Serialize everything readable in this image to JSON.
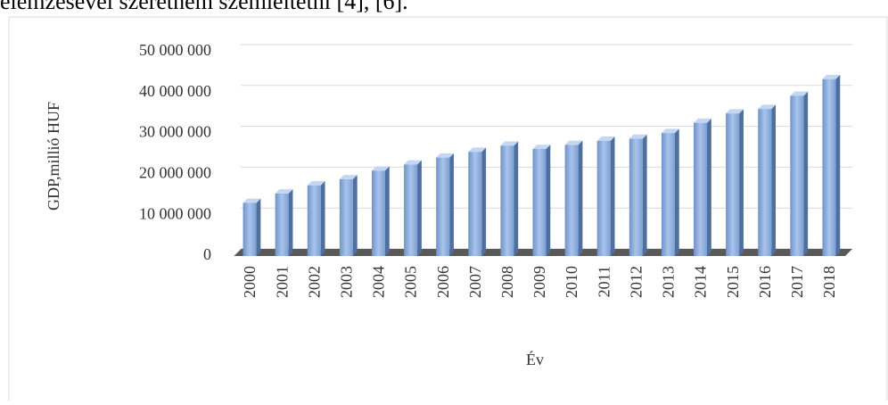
{
  "header_text": "elemzésével szeretném szemléltetni [4], [6].",
  "chart_data": {
    "type": "bar3d",
    "y_label": "GDP,millió HUF",
    "x_label": "Év",
    "categories": [
      "2000",
      "2001",
      "2002",
      "2003",
      "2004",
      "2005",
      "2006",
      "2007",
      "2008",
      "2009",
      "2010",
      "2011",
      "2012",
      "2013",
      "2014",
      "2015",
      "2016",
      "2017",
      "2018"
    ],
    "values": [
      13000000,
      15300000,
      17300000,
      18800000,
      20900000,
      22400000,
      24100000,
      25500000,
      27000000,
      26200000,
      27200000,
      28200000,
      28700000,
      30100000,
      32600000,
      34900000,
      36000000,
      39200000,
      43300000
    ],
    "color": "#8db0e0",
    "ylim": [
      0,
      50000000
    ],
    "yticks": [
      0,
      {
        "value": 10000000,
        "label": "10 000 000"
      },
      {
        "value": 20000000,
        "label": "20 000 000"
      },
      {
        "value": 30000000,
        "label": "30 000 000"
      },
      {
        "value": 40000000,
        "label": "40 000 000"
      },
      {
        "value": 50000000,
        "label": "50 000 000"
      }
    ],
    "grid": true
  }
}
